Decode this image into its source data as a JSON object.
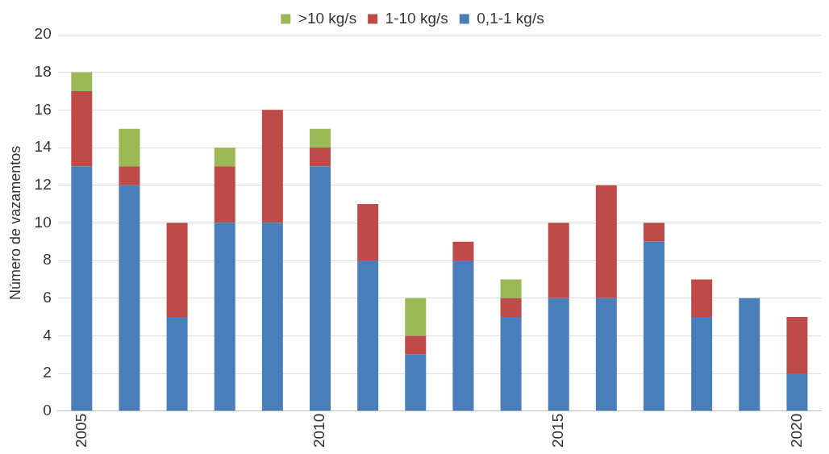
{
  "chart_data": {
    "type": "bar",
    "stacked": true,
    "ylabel": "Número de vazamentos",
    "categories": [
      "2005",
      null,
      null,
      null,
      null,
      "2010",
      null,
      null,
      null,
      null,
      "2015",
      null,
      null,
      null,
      null,
      "2020"
    ],
    "series": [
      {
        "name": "0,1-1 kg/s",
        "color": "#4a7ebb",
        "values": [
          13,
          12,
          5,
          10,
          10,
          13,
          8,
          3,
          8,
          5,
          6,
          6,
          9,
          5,
          6,
          2
        ]
      },
      {
        "name": "1-10 kg/s",
        "color": "#be4b48",
        "values": [
          4,
          1,
          5,
          3,
          6,
          1,
          3,
          1,
          1,
          1,
          4,
          6,
          1,
          2,
          0,
          3
        ]
      },
      {
        "name": ">10 kg/s",
        "color": "#98b954",
        "values": [
          1,
          2,
          0,
          1,
          0,
          1,
          0,
          2,
          0,
          1,
          0,
          0,
          0,
          0,
          0,
          0
        ]
      }
    ],
    "ylim": [
      0,
      20
    ],
    "yticks": [
      0,
      2,
      4,
      6,
      8,
      10,
      12,
      14,
      16,
      18,
      20
    ],
    "grid": "y",
    "legend": "top"
  }
}
